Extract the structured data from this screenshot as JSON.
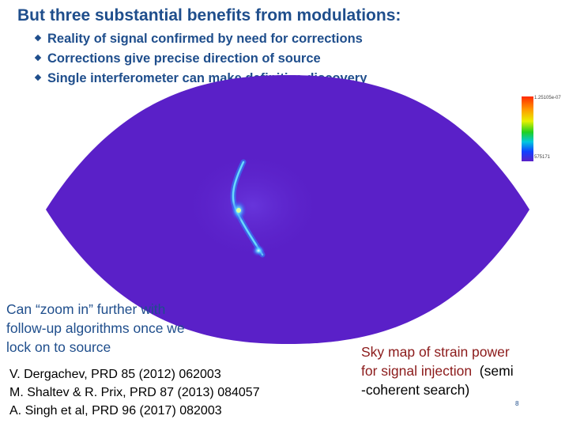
{
  "slide": {
    "title": "But three substantial benefits from modulations:",
    "bullets": [
      "Reality of signal confirmed by need for corrections",
      "Corrections give precise direction of source",
      "Single interferometer can make definitive discovery"
    ],
    "zoom_note": "Can “zoom in” further with follow-up algorithms once we lock on to source",
    "references": [
      "V. Dergachev, PRD 85 (2012) 062003",
      "M. Shaltev & R. Prix, PRD 87 (2013) 084057",
      "A. Singh et al, PRD 96 (2017) 082003"
    ],
    "caption_line1_red": "Sky map of strain power",
    "caption_line2_red": "for signal injection",
    "caption_line2_black": "  (semi",
    "caption_line3_black": "-coherent search)",
    "page_number": "8"
  },
  "skymap": {
    "colorbar_max_label": "1.25105e-07",
    "colorbar_min_label": "575171",
    "background_color": "#5a20c8",
    "colors": {
      "title": "#1f4e8c",
      "caption_red": "#8b1a1a"
    }
  }
}
